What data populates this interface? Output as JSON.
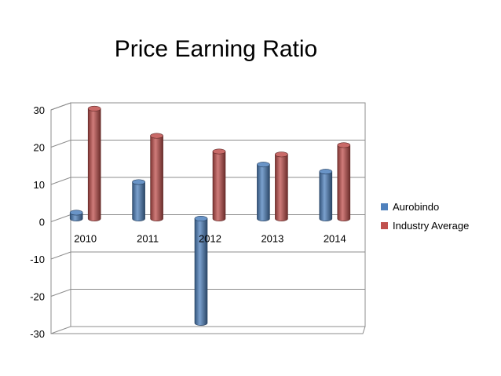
{
  "chart_data": {
    "type": "bar",
    "title": "Price Earning Ratio",
    "xlabel": "",
    "ylabel": "",
    "categories": [
      "2010",
      "2011",
      "2012",
      "2013",
      "2014"
    ],
    "series": [
      {
        "name": "Aurobindo",
        "values": [
          1.6,
          9.8,
          -28,
          14.5,
          12.6
        ],
        "color": "#4F81BD"
      },
      {
        "name": "Industry Average",
        "values": [
          29.5,
          22.2,
          18,
          17.2,
          19.7
        ],
        "color": "#C0504D"
      }
    ],
    "yticks": [
      30,
      20,
      10,
      0,
      -10,
      -20,
      -30
    ],
    "ylim": [
      -30,
      30
    ],
    "grid": true,
    "legend": "right",
    "style": "3d-cylinder"
  }
}
